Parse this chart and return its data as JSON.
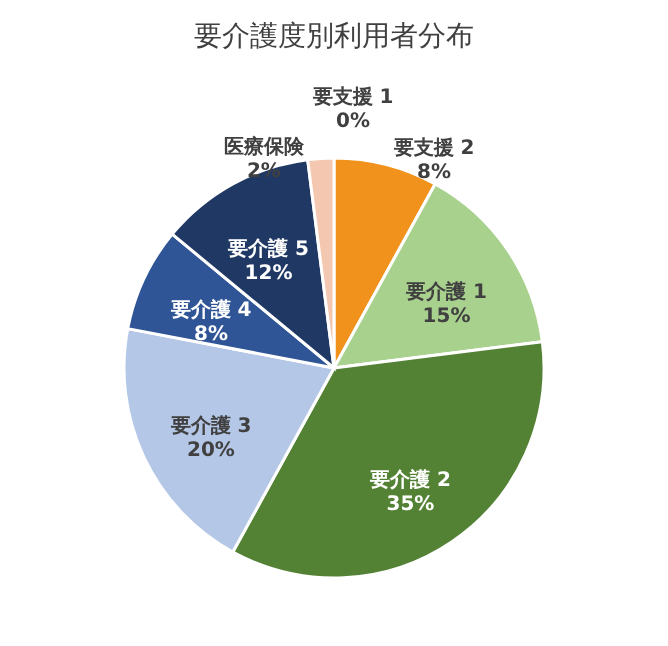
{
  "chart_data": {
    "type": "pie",
    "title": "要介護度別利用者分布",
    "categories": [
      "要支援 1",
      "要支援 2",
      "要介護 1",
      "要介護 2",
      "要介護 3",
      "要介護 4",
      "要介護 5",
      "医療保険"
    ],
    "values": [
      0,
      8,
      15,
      35,
      20,
      8,
      12,
      2
    ],
    "colors": [
      "#a5a5a5",
      "#f0921c",
      "#a9d18e",
      "#548235",
      "#b4c7e7",
      "#2f5597",
      "#203864",
      "#f4c7b0"
    ],
    "value_labels": [
      "0%",
      "8%",
      "15%",
      "35%",
      "20%",
      "8%",
      "12%",
      "2%"
    ],
    "data_labels": true,
    "legend": false
  }
}
